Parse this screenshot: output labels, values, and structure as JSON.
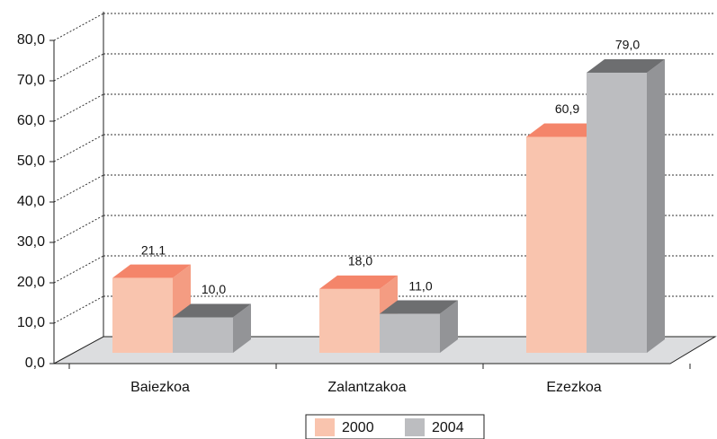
{
  "chart_data": {
    "type": "bar3d",
    "categories": [
      "Baiezkoa",
      "Zalantzakoa",
      "Ezezkoa"
    ],
    "series": [
      {
        "name": "2000",
        "color": "#f9c4ae",
        "values": [
          21.1,
          18.0,
          60.9
        ],
        "value_labels": [
          "21,1",
          "18,0",
          "60,9"
        ]
      },
      {
        "name": "2004",
        "color": "#bcbdc0",
        "values": [
          10.0,
          11.0,
          79.0
        ],
        "value_labels": [
          "10,0",
          "11,0",
          "79,0"
        ]
      }
    ],
    "ylim": [
      0,
      80
    ],
    "yticks": [
      {
        "value": 0,
        "label": "0,0"
      },
      {
        "value": 10,
        "label": "10,0"
      },
      {
        "value": 20,
        "label": "20,0"
      },
      {
        "value": 30,
        "label": "30,0"
      },
      {
        "value": 40,
        "label": "40,0"
      },
      {
        "value": 50,
        "label": "50,0"
      },
      {
        "value": 60,
        "label": "60,0"
      },
      {
        "value": 70,
        "label": "70,0"
      },
      {
        "value": 80,
        "label": "80,0"
      }
    ],
    "grid": true,
    "legend": "bottom"
  }
}
